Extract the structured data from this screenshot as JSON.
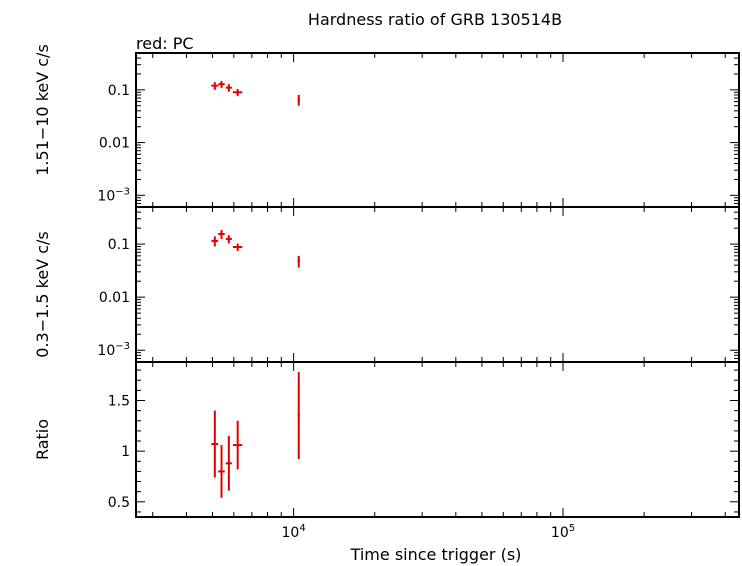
{
  "chart_data": {
    "type": "scatter",
    "title": "Hardness ratio of GRB 130514B",
    "legend_note": "red: PC",
    "xlabel": "Time since trigger (s)",
    "x_scale": "log",
    "xlim": [
      2600,
      450000
    ],
    "x_ticks": [
      {
        "base": "10",
        "exp": "4"
      },
      {
        "base": "10",
        "exp": "5"
      }
    ],
    "colors": {
      "series": "#e00000",
      "axis": "#000000"
    },
    "panels": [
      {
        "id": "hard",
        "ylabel": "1.51−10 keV c/s",
        "y_scale": "log",
        "ylim": [
          0.0006,
          0.5
        ],
        "y_ticks": [
          {
            "label": "0.1"
          },
          {
            "label": "0.01"
          },
          {
            "base": "10",
            "exp": "−3"
          }
        ],
        "points": [
          {
            "x": 5100,
            "xerr": [
              150,
              150
            ],
            "y": 0.12,
            "yerr": [
              0.02,
              0.02
            ]
          },
          {
            "x": 5400,
            "xerr": [
              150,
              150
            ],
            "y": 0.128,
            "yerr": [
              0.02,
              0.02
            ]
          },
          {
            "x": 5750,
            "xerr": [
              150,
              150
            ],
            "y": 0.11,
            "yerr": [
              0.018,
              0.018
            ]
          },
          {
            "x": 6200,
            "xerr": [
              250,
              250
            ],
            "y": 0.09,
            "yerr": [
              0.014,
              0.014
            ]
          },
          {
            "x": 10450,
            "xerr": [
              100,
              100
            ],
            "y": 0.065,
            "yerr": [
              0.015,
              0.015
            ]
          }
        ]
      },
      {
        "id": "soft",
        "ylabel": "0.3−1.5 keV c/s",
        "y_scale": "log",
        "ylim": [
          0.0006,
          0.5
        ],
        "y_ticks": [
          {
            "label": "0.1"
          },
          {
            "label": "0.01"
          },
          {
            "base": "10",
            "exp": "−3"
          }
        ],
        "points": [
          {
            "x": 5100,
            "xerr": [
              150,
              150
            ],
            "y": 0.115,
            "yerr": [
              0.025,
              0.025
            ]
          },
          {
            "x": 5400,
            "xerr": [
              150,
              150
            ],
            "y": 0.155,
            "yerr": [
              0.03,
              0.03
            ]
          },
          {
            "x": 5750,
            "xerr": [
              150,
              150
            ],
            "y": 0.125,
            "yerr": [
              0.022,
              0.022
            ]
          },
          {
            "x": 6200,
            "xerr": [
              250,
              250
            ],
            "y": 0.088,
            "yerr": [
              0.014,
              0.014
            ]
          },
          {
            "x": 10450,
            "xerr": [
              100,
              100
            ],
            "y": 0.048,
            "yerr": [
              0.012,
              0.012
            ]
          }
        ]
      },
      {
        "id": "ratio",
        "ylabel": "Ratio",
        "y_scale": "linear",
        "ylim": [
          0.35,
          1.88
        ],
        "y_ticks": [
          {
            "label": "1.5",
            "value": 1.5
          },
          {
            "label": "1",
            "value": 1.0
          },
          {
            "label": "0.5",
            "value": 0.5
          }
        ],
        "points": [
          {
            "x": 5100,
            "xerr": [
              150,
              150
            ],
            "y": 1.07,
            "yerr": [
              0.33,
              0.33
            ]
          },
          {
            "x": 5400,
            "xerr": [
              150,
              150
            ],
            "y": 0.8,
            "yerr": [
              0.26,
              0.26
            ]
          },
          {
            "x": 5750,
            "xerr": [
              150,
              150
            ],
            "y": 0.88,
            "yerr": [
              0.27,
              0.27
            ]
          },
          {
            "x": 6200,
            "xerr": [
              250,
              250
            ],
            "y": 1.06,
            "yerr": [
              0.24,
              0.24
            ]
          },
          {
            "x": 10450,
            "xerr": [
              100,
              100
            ],
            "y": 1.35,
            "yerr": [
              0.43,
              0.43
            ]
          }
        ]
      }
    ]
  }
}
